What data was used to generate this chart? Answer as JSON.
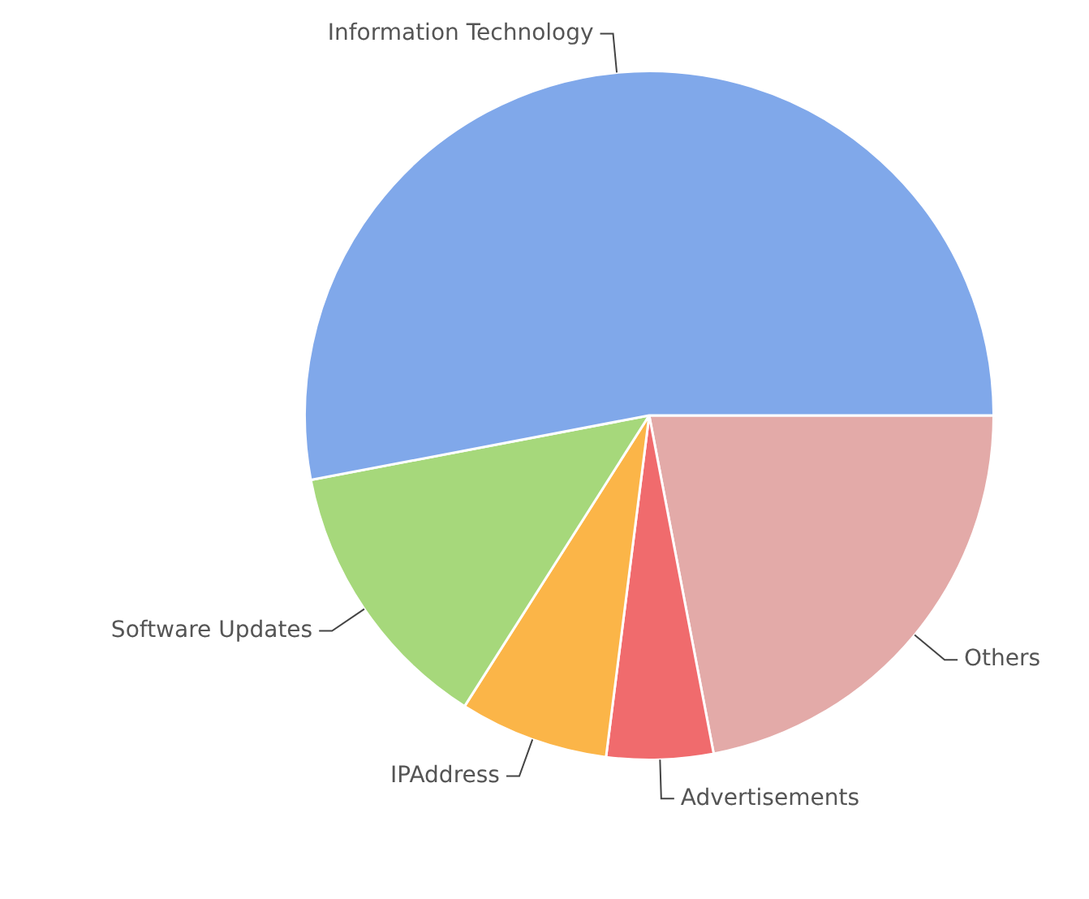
{
  "chart_data": {
    "type": "pie",
    "categories": [
      "Others",
      "Advertisements",
      "IPAddress",
      "Software Updates",
      "Information Technology"
    ],
    "values": [
      22,
      5,
      7,
      13,
      53
    ],
    "colors": [
      "#e3aaa8",
      "#f06b6d",
      "#fbb548",
      "#a6d87b",
      "#80a8ea"
    ],
    "legend": false
  }
}
